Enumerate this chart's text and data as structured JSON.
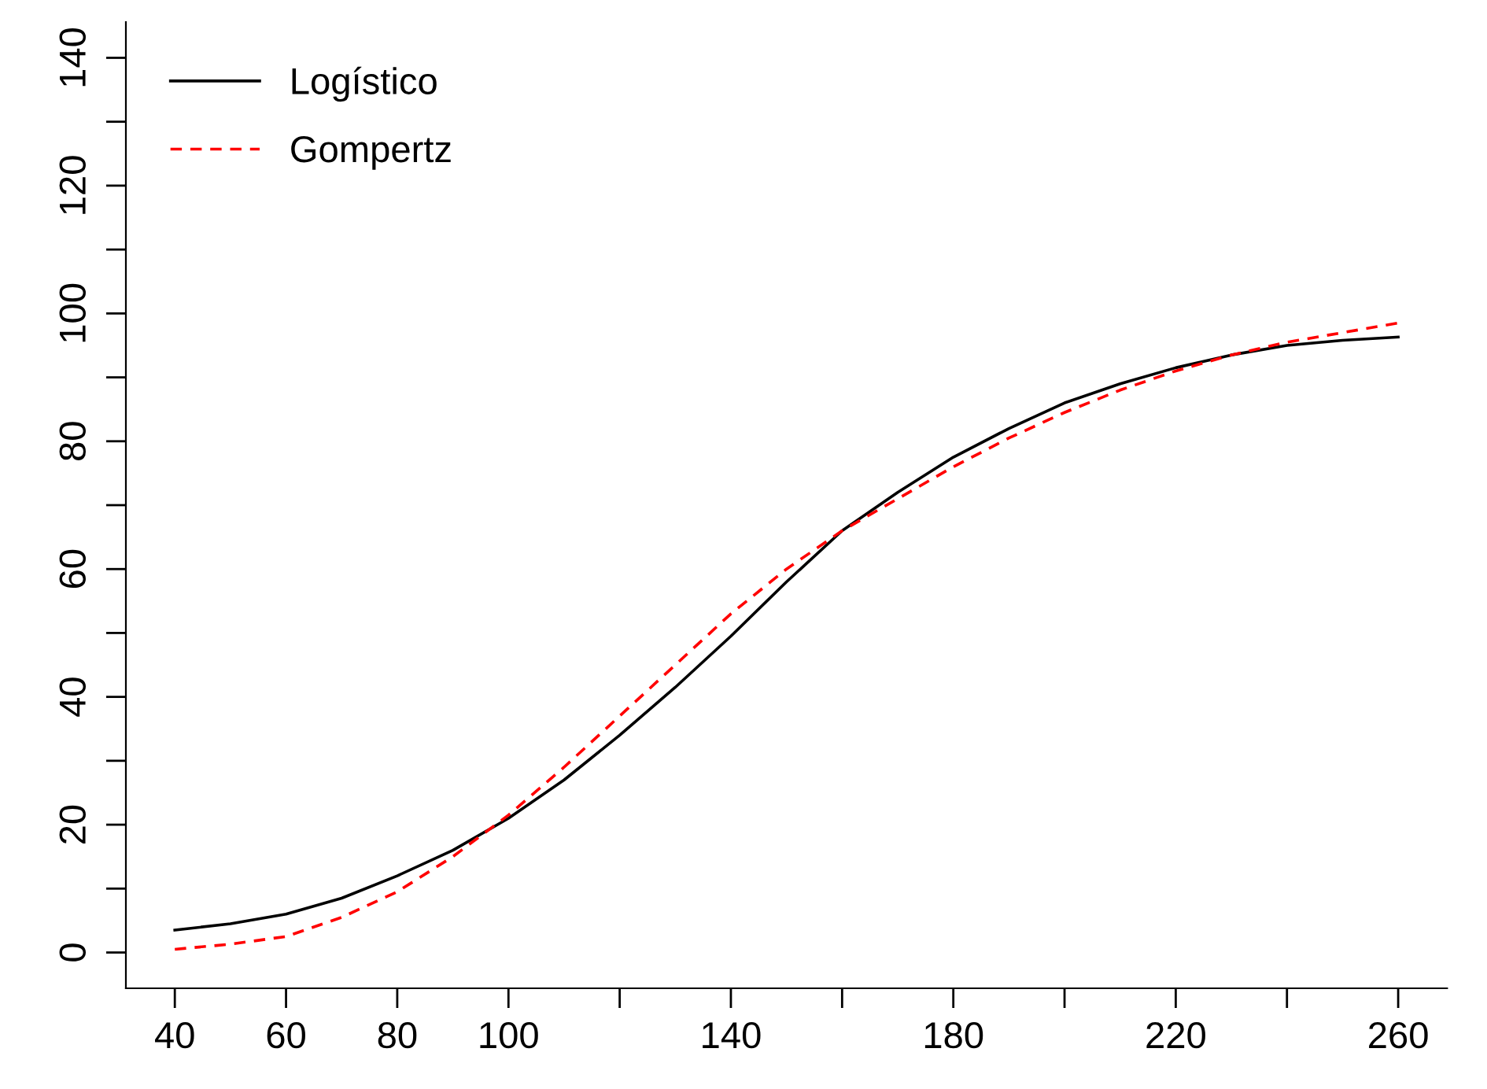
{
  "chart_data": {
    "type": "line",
    "x": [
      40,
      50,
      60,
      70,
      80,
      90,
      100,
      110,
      120,
      130,
      140,
      150,
      160,
      170,
      180,
      190,
      200,
      210,
      220,
      230,
      240,
      250,
      260
    ],
    "series": [
      {
        "name": "Logístico",
        "color": "#000000",
        "line_style": "solid",
        "values": [
          3.5,
          4.5,
          6,
          8.5,
          12,
          16,
          21,
          27,
          34,
          41.5,
          49.5,
          58,
          66,
          72,
          77.5,
          82,
          86,
          89,
          91.5,
          93.5,
          95,
          95.8,
          96.3
        ]
      },
      {
        "name": "Gompertz",
        "color": "#ff0000",
        "line_style": "dashed",
        "values": [
          0.5,
          1.3,
          2.5,
          5.5,
          9.5,
          15,
          21.5,
          29,
          37,
          45,
          53,
          60,
          66,
          71,
          76,
          80.5,
          84.5,
          88,
          91,
          93.5,
          95.5,
          97,
          98.5
        ]
      }
    ],
    "xlim": [
      31.2,
      268.8
    ],
    "ylim": [
      -5.6,
      145.6
    ],
    "xticks": [
      40,
      60,
      80,
      100,
      {
        "value": 120,
        "label": null
      },
      140,
      {
        "value": 160,
        "label": null
      },
      180,
      {
        "value": 200,
        "label": null
      },
      220,
      {
        "value": 240,
        "label": null
      },
      260
    ],
    "yticks": [
      0,
      {
        "value": 10,
        "label": null
      },
      20,
      {
        "value": 30,
        "label": null
      },
      40,
      {
        "value": 50,
        "label": null
      },
      60,
      {
        "value": 70,
        "label": null
      },
      80,
      {
        "value": 90,
        "label": null
      },
      100,
      {
        "value": 110,
        "label": null
      },
      120,
      {
        "value": 130,
        "label": null
      },
      140
    ],
    "grid": false,
    "legend": "top left",
    "marker": "none"
  }
}
